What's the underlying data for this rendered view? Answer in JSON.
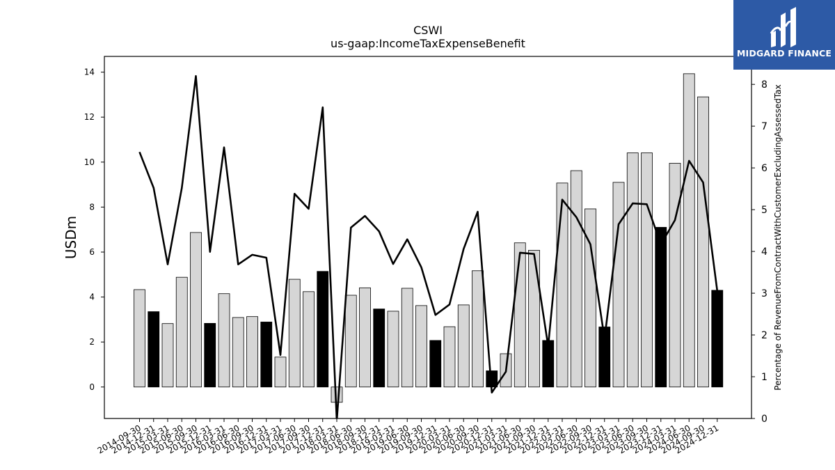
{
  "chart_data": {
    "type": "bar",
    "title": "CSWI",
    "subtitle": "us-gaap:IncomeTaxExpenseBenefit",
    "ylabel": "USDm",
    "y2label": "Percentage of RevenueFromContractWithCustomerExcludingAssessedTax",
    "ylim": [
      -1.4,
      14.7
    ],
    "y2lim": [
      0,
      8.67
    ],
    "yticks": [
      0,
      2,
      4,
      6,
      8,
      10,
      12,
      14
    ],
    "y2ticks": [
      0,
      1,
      2,
      3,
      4,
      5,
      6,
      7,
      8
    ],
    "categories": [
      "2014-09-30",
      "2014-12-31",
      "2015-03-31",
      "2015-06-30",
      "2015-09-30",
      "2015-12-31",
      "2016-03-31",
      "2016-06-30",
      "2016-09-30",
      "2016-12-31",
      "2017-03-31",
      "2017-06-30",
      "2017-09-30",
      "2017-12-31",
      "2018-03-31",
      "2018-06-30",
      "2018-09-30",
      "2018-12-31",
      "2019-03-31",
      "2019-06-30",
      "2019-09-30",
      "2019-12-31",
      "2020-03-31",
      "2020-06-30",
      "2020-09-30",
      "2020-12-31",
      "2021-03-31",
      "2021-06-30",
      "2021-09-30",
      "2021-12-31",
      "2022-03-31",
      "2022-06-30",
      "2022-09-30",
      "2022-12-31",
      "2023-03-31",
      "2023-06-30",
      "2023-09-30",
      "2023-12-31",
      "2024-03-31",
      "2024-06-30",
      "2024-09-30",
      "2024-12-31"
    ],
    "series": [
      {
        "type": "bar",
        "values": [
          4.33,
          3.35,
          2.82,
          4.88,
          6.87,
          2.83,
          4.15,
          3.09,
          3.13,
          2.89,
          1.33,
          4.79,
          4.24,
          5.14,
          -0.68,
          4.08,
          4.41,
          3.47,
          3.37,
          4.39,
          3.62,
          2.07,
          2.68,
          3.65,
          5.17,
          0.72,
          1.48,
          6.41,
          6.08,
          2.07,
          9.07,
          9.62,
          7.92,
          2.67,
          9.1,
          10.41,
          10.41,
          7.1,
          9.95,
          13.93,
          12.9,
          4.3
        ],
        "highlight": [
          false,
          true,
          false,
          false,
          false,
          true,
          false,
          false,
          false,
          true,
          false,
          false,
          false,
          true,
          false,
          false,
          false,
          true,
          false,
          false,
          false,
          true,
          false,
          false,
          false,
          true,
          false,
          false,
          false,
          true,
          false,
          false,
          false,
          true,
          false,
          false,
          false,
          true,
          false,
          false,
          false,
          true
        ]
      },
      {
        "type": "line",
        "axis": "right",
        "values": [
          6.38,
          5.52,
          3.69,
          5.52,
          8.2,
          3.99,
          6.49,
          3.69,
          3.92,
          3.85,
          1.52,
          5.38,
          5.02,
          7.45,
          -0.05,
          4.57,
          4.85,
          4.48,
          3.7,
          4.29,
          3.62,
          2.48,
          2.73,
          4.06,
          4.95,
          0.62,
          1.12,
          3.97,
          3.94,
          1.73,
          5.24,
          4.82,
          4.17,
          1.91,
          4.65,
          5.15,
          5.13,
          4.17,
          4.75,
          6.17,
          5.65,
          3.05
        ]
      }
    ],
    "colors": {
      "bar": "#d6d6d6",
      "bar_highlight": "#000000",
      "line": "#000000"
    },
    "grid": false
  },
  "logo": {
    "text": "MIDGARD FINANCE"
  }
}
